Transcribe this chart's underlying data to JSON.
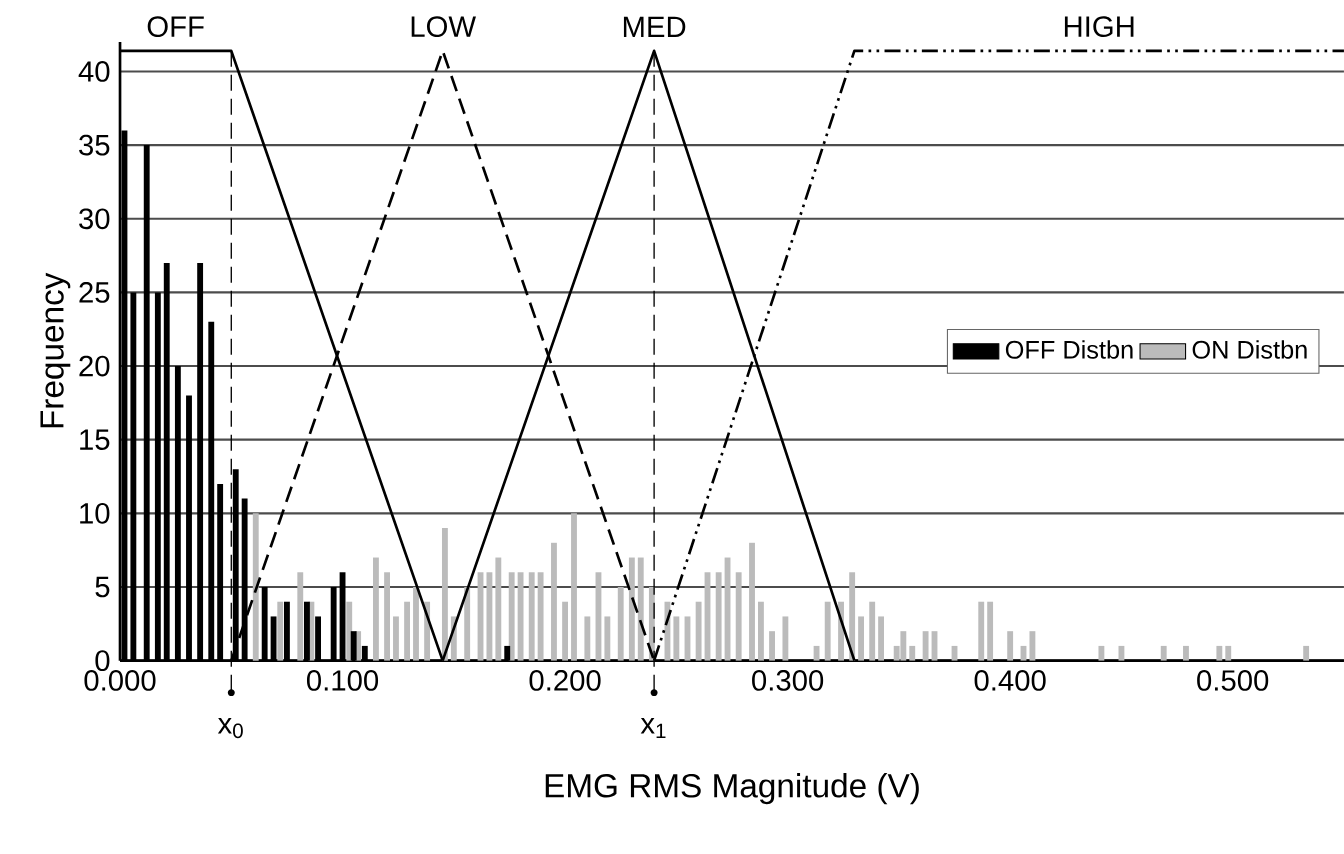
{
  "chart_data": {
    "type": "bar",
    "xlabel": "EMG RMS Magnitude (V)",
    "ylabel": "Frequency",
    "xlim": [
      0,
      0.55
    ],
    "ylim": [
      0,
      42
    ],
    "xticks": [
      {
        "value": 0,
        "label": "0.000"
      },
      {
        "value": 0.1,
        "label": "0.100"
      },
      {
        "value": 0.2,
        "label": "0.200"
      },
      {
        "value": 0.3,
        "label": "0.300"
      },
      {
        "value": 0.4,
        "label": "0.400"
      },
      {
        "value": 0.5,
        "label": "0.500"
      }
    ],
    "yticks": [
      0,
      5,
      10,
      15,
      20,
      25,
      30,
      35,
      40
    ],
    "grid": "y",
    "legend": "right",
    "series": [
      {
        "name": "OFF Distbn",
        "color": "#000000",
        "x": [
          0.002,
          0.006,
          0.012,
          0.017,
          0.021,
          0.026,
          0.031,
          0.036,
          0.041,
          0.045,
          0.052,
          0.056,
          0.065,
          0.069,
          0.075,
          0.084,
          0.089,
          0.096,
          0.1,
          0.105,
          0.11,
          0.174
        ],
        "values": [
          36,
          25,
          35,
          25,
          27,
          20,
          18,
          27,
          23,
          12,
          13,
          11,
          5,
          3,
          4,
          4,
          3,
          5,
          6,
          2,
          1,
          1
        ]
      },
      {
        "name": "ON Distbn",
        "color": "#bbbbbb",
        "x": [
          0.061,
          0.072,
          0.081,
          0.086,
          0.103,
          0.107,
          0.115,
          0.12,
          0.124,
          0.129,
          0.133,
          0.138,
          0.146,
          0.15,
          0.156,
          0.162,
          0.166,
          0.17,
          0.176,
          0.18,
          0.185,
          0.189,
          0.195,
          0.2,
          0.204,
          0.21,
          0.215,
          0.219,
          0.225,
          0.23,
          0.234,
          0.239,
          0.246,
          0.25,
          0.255,
          0.26,
          0.264,
          0.269,
          0.273,
          0.278,
          0.284,
          0.288,
          0.293,
          0.299,
          0.313,
          0.318,
          0.324,
          0.329,
          0.333,
          0.338,
          0.342,
          0.349,
          0.352,
          0.356,
          0.362,
          0.366,
          0.375,
          0.387,
          0.391,
          0.4,
          0.406,
          0.41,
          0.441,
          0.45,
          0.469,
          0.479,
          0.494,
          0.498,
          0.533
        ],
        "values": [
          10,
          4,
          6,
          4,
          4,
          2,
          7,
          6,
          3,
          4,
          5,
          4,
          9,
          3,
          5,
          6,
          6,
          7,
          6,
          6,
          6,
          6,
          8,
          4,
          10,
          3,
          6,
          3,
          5,
          7,
          7,
          5,
          4,
          3,
          3,
          4,
          6,
          6,
          7,
          6,
          8,
          4,
          2,
          3,
          1,
          4,
          4,
          6,
          3,
          4,
          3,
          1,
          2,
          1,
          2,
          2,
          1,
          4,
          4,
          2,
          1,
          2,
          1,
          1,
          1,
          1,
          1,
          1,
          1
        ]
      },
      {
        "name": "OFF",
        "type": "line",
        "color": "#000000",
        "line_style": "solid",
        "x": [
          0,
          0.05,
          0.145
        ],
        "values": [
          41.4,
          41.4,
          0
        ]
      },
      {
        "name": "LOW",
        "type": "line",
        "color": "#000000",
        "line_style": "dashed",
        "x": [
          0.05,
          0.145,
          0.24
        ],
        "values": [
          0,
          41.4,
          0
        ]
      },
      {
        "name": "MED",
        "type": "line",
        "color": "#000000",
        "line_style": "solid",
        "x": [
          0.145,
          0.24,
          0.33
        ],
        "values": [
          0,
          41.4,
          0
        ]
      },
      {
        "name": "HIGH",
        "type": "line",
        "color": "#000000",
        "line_style": "dashdotdotted",
        "x": [
          0.24,
          0.33,
          0.55
        ],
        "values": [
          0,
          41.4,
          41.4
        ]
      }
    ],
    "ref_lines": [
      {
        "axis": "x",
        "value": 0.05,
        "label": "x$_{0}$",
        "line_style": "dashed"
      },
      {
        "axis": "x",
        "value": 0.24,
        "label": "x$_{1}$",
        "line_style": "dashed"
      }
    ]
  }
}
